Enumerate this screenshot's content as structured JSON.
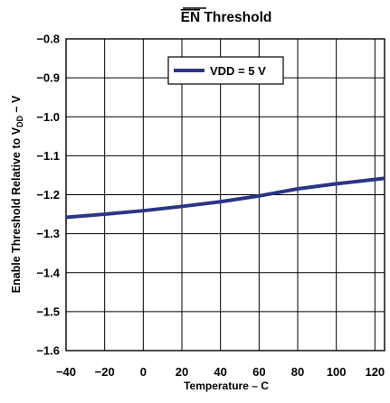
{
  "chart_data": {
    "type": "line",
    "title_prefix": "EN",
    "title_suffix": " Threshold",
    "xlabel": "Temperature –  C",
    "ylabel_main": "Enable Threshold Relative to V",
    "ylabel_sub": "DD",
    "ylabel_tail": " – V",
    "xlim": [
      -40,
      125
    ],
    "ylim": [
      -1.6,
      -0.8
    ],
    "x_ticks": [
      -40,
      -20,
      0,
      20,
      40,
      60,
      80,
      100,
      120
    ],
    "x_tick_labels": [
      "−40",
      "−20",
      "0",
      "20",
      "40",
      "60",
      "80",
      "100",
      "120"
    ],
    "y_ticks": [
      -0.8,
      -0.9,
      -1.0,
      -1.1,
      -1.2,
      -1.3,
      -1.4,
      -1.5,
      -1.6
    ],
    "y_tick_labels": [
      "−0.8",
      "−0.9",
      "−1.0",
      "−1.1",
      "−1.2",
      "−1.3",
      "−1.4",
      "−1.5",
      "−1.6"
    ],
    "x_grid": [
      -40,
      -20,
      0,
      20,
      40,
      60,
      80,
      100,
      120
    ],
    "y_grid": [
      -0.9,
      -1.0,
      -1.1,
      -1.2,
      -1.3,
      -1.4,
      -1.5
    ],
    "grid": true,
    "legend_position": "top-center",
    "series": [
      {
        "name": "VDD = 5 V",
        "color": "#2b3585",
        "x": [
          -40,
          -20,
          0,
          20,
          40,
          60,
          80,
          100,
          125
        ],
        "y": [
          -1.258,
          -1.25,
          -1.241,
          -1.23,
          -1.218,
          -1.203,
          -1.185,
          -1.172,
          -1.158
        ]
      }
    ]
  }
}
